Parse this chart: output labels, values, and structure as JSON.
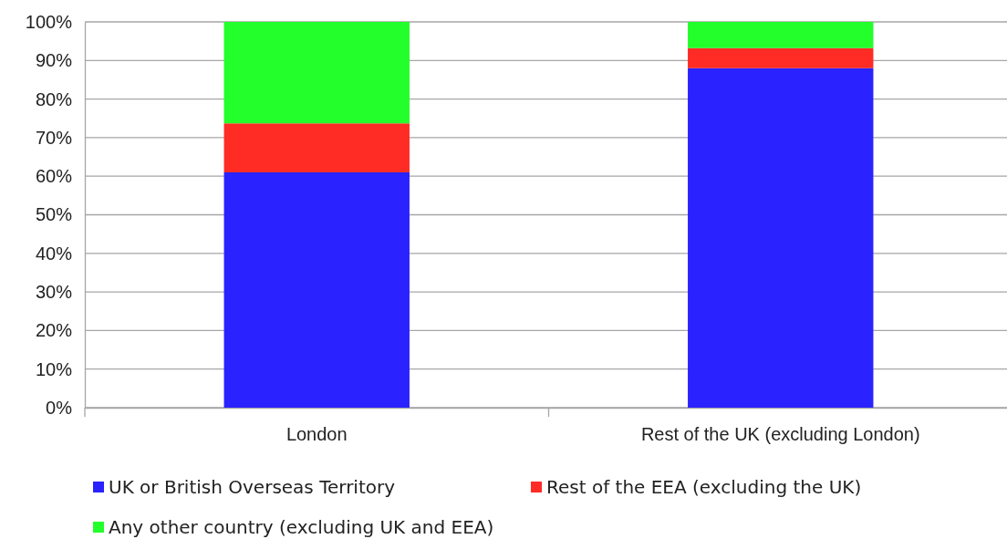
{
  "chart_data": {
    "type": "bar",
    "stacked": true,
    "categories": [
      "London",
      "Rest of the UK (excluding London)"
    ],
    "series": [
      {
        "name": "UK or British Overseas Territory",
        "color": "#2a22ff",
        "values": [
          61,
          88
        ]
      },
      {
        "name": "Rest of the EEA (excluding the UK)",
        "color": "#ff2b25",
        "values": [
          12.7,
          5.2
        ]
      },
      {
        "name": "Any other country (excluding UK and EEA)",
        "color": "#22ff2b",
        "values": [
          26.3,
          6.8
        ]
      }
    ],
    "ylim": [
      0,
      100
    ],
    "yticks": [
      {
        "value": 0,
        "label": "0%"
      },
      {
        "value": 10,
        "label": "10%"
      },
      {
        "value": 20,
        "label": "20%"
      },
      {
        "value": 30,
        "label": "30%"
      },
      {
        "value": 40,
        "label": "40%"
      },
      {
        "value": 50,
        "label": "50%"
      },
      {
        "value": 60,
        "label": "60%"
      },
      {
        "value": 70,
        "label": "70%"
      },
      {
        "value": 80,
        "label": "80%"
      },
      {
        "value": 90,
        "label": "90%"
      },
      {
        "value": 100,
        "label": "100%"
      }
    ],
    "grid": "y",
    "legend": "bottom"
  }
}
